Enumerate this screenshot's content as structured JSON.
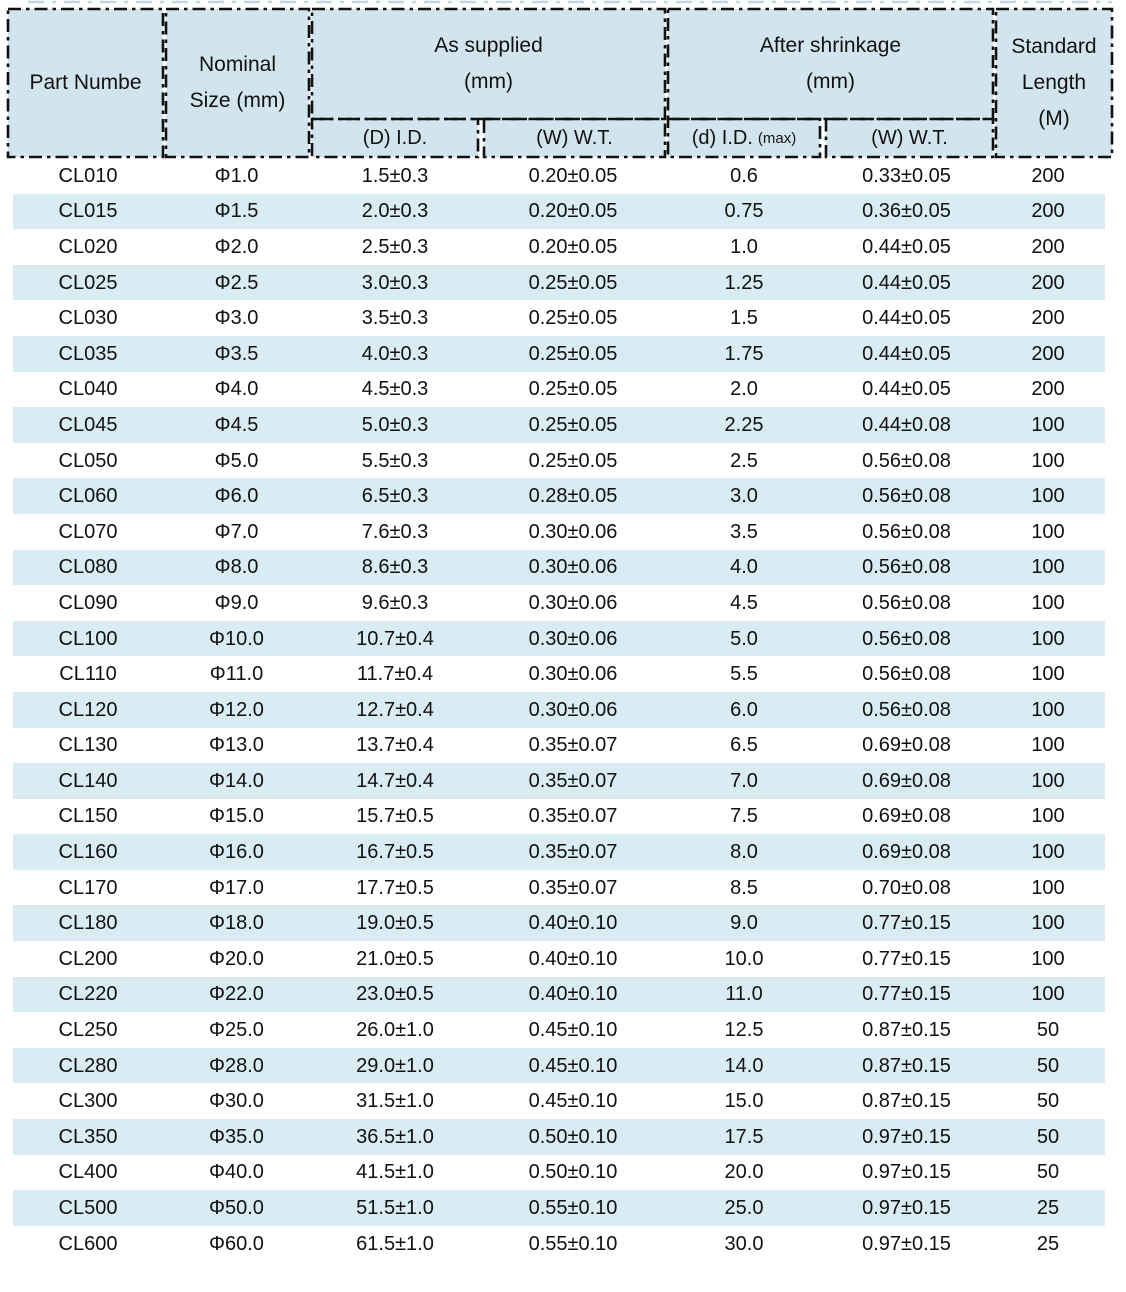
{
  "table": {
    "colors": {
      "header_bg": "#d2e5ef",
      "stripe_bg": "#d9ebf3",
      "border": "#111111"
    },
    "columns": {
      "part": "Part Numbe",
      "nominal": "Nominal\nSize (mm)",
      "as_supplied": "As supplied\n(mm)",
      "after_shrinkage": "After shrinkage\n(mm)",
      "standard_length": "Standard\nLength\n(M)",
      "sub_supplied_id": "(D) I.D.",
      "sub_supplied_wt": "(W) W.T.",
      "sub_shrunk_id": "(d) I.D.",
      "sub_shrunk_id_max": "(max)",
      "sub_shrunk_wt": "(W) W.T."
    },
    "rows": [
      [
        "CL010",
        "Φ1.0",
        "1.5±0.3",
        "0.20±0.05",
        "0.6",
        "0.33±0.05",
        "200"
      ],
      [
        "CL015",
        "Φ1.5",
        "2.0±0.3",
        "0.20±0.05",
        "0.75",
        "0.36±0.05",
        "200"
      ],
      [
        "CL020",
        "Φ2.0",
        "2.5±0.3",
        "0.20±0.05",
        "1.0",
        "0.44±0.05",
        "200"
      ],
      [
        "CL025",
        "Φ2.5",
        "3.0±0.3",
        "0.25±0.05",
        "1.25",
        "0.44±0.05",
        "200"
      ],
      [
        "CL030",
        "Φ3.0",
        "3.5±0.3",
        "0.25±0.05",
        "1.5",
        "0.44±0.05",
        "200"
      ],
      [
        "CL035",
        "Φ3.5",
        "4.0±0.3",
        "0.25±0.05",
        "1.75",
        "0.44±0.05",
        "200"
      ],
      [
        "CL040",
        "Φ4.0",
        "4.5±0.3",
        "0.25±0.05",
        "2.0",
        "0.44±0.05",
        "200"
      ],
      [
        "CL045",
        "Φ4.5",
        "5.0±0.3",
        "0.25±0.05",
        "2.25",
        "0.44±0.08",
        "100"
      ],
      [
        "CL050",
        "Φ5.0",
        "5.5±0.3",
        "0.25±0.05",
        "2.5",
        "0.56±0.08",
        "100"
      ],
      [
        "CL060",
        "Φ6.0",
        "6.5±0.3",
        "0.28±0.05",
        "3.0",
        "0.56±0.08",
        "100"
      ],
      [
        "CL070",
        "Φ7.0",
        "7.6±0.3",
        "0.30±0.06",
        "3.5",
        "0.56±0.08",
        "100"
      ],
      [
        "CL080",
        "Φ8.0",
        "8.6±0.3",
        "0.30±0.06",
        "4.0",
        "0.56±0.08",
        "100"
      ],
      [
        "CL090",
        "Φ9.0",
        "9.6±0.3",
        "0.30±0.06",
        "4.5",
        "0.56±0.08",
        "100"
      ],
      [
        "CL100",
        "Φ10.0",
        "10.7±0.4",
        "0.30±0.06",
        "5.0",
        "0.56±0.08",
        "100"
      ],
      [
        "CL110",
        "Φ11.0",
        "11.7±0.4",
        "0.30±0.06",
        "5.5",
        "0.56±0.08",
        "100"
      ],
      [
        "CL120",
        "Φ12.0",
        "12.7±0.4",
        "0.30±0.06",
        "6.0",
        "0.56±0.08",
        "100"
      ],
      [
        "CL130",
        "Φ13.0",
        "13.7±0.4",
        "0.35±0.07",
        "6.5",
        "0.69±0.08",
        "100"
      ],
      [
        "CL140",
        "Φ14.0",
        "14.7±0.4",
        "0.35±0.07",
        "7.0",
        "0.69±0.08",
        "100"
      ],
      [
        "CL150",
        "Φ15.0",
        "15.7±0.5",
        "0.35±0.07",
        "7.5",
        "0.69±0.08",
        "100"
      ],
      [
        "CL160",
        "Φ16.0",
        "16.7±0.5",
        "0.35±0.07",
        "8.0",
        "0.69±0.08",
        "100"
      ],
      [
        "CL170",
        "Φ17.0",
        "17.7±0.5",
        "0.35±0.07",
        "8.5",
        "0.70±0.08",
        "100"
      ],
      [
        "CL180",
        "Φ18.0",
        "19.0±0.5",
        "0.40±0.10",
        "9.0",
        "0.77±0.15",
        "100"
      ],
      [
        "CL200",
        "Φ20.0",
        "21.0±0.5",
        "0.40±0.10",
        "10.0",
        "0.77±0.15",
        "100"
      ],
      [
        "CL220",
        "Φ22.0",
        "23.0±0.5",
        "0.40±0.10",
        "11.0",
        "0.77±0.15",
        "100"
      ],
      [
        "CL250",
        "Φ25.0",
        "26.0±1.0",
        "0.45±0.10",
        "12.5",
        "0.87±0.15",
        "50"
      ],
      [
        "CL280",
        "Φ28.0",
        "29.0±1.0",
        "0.45±0.10",
        "14.0",
        "0.87±0.15",
        "50"
      ],
      [
        "CL300",
        "Φ30.0",
        "31.5±1.0",
        "0.45±0.10",
        "15.0",
        "0.87±0.15",
        "50"
      ],
      [
        "CL350",
        "Φ35.0",
        "36.5±1.0",
        "0.50±0.10",
        "17.5",
        "0.97±0.15",
        "50"
      ],
      [
        "CL400",
        "Φ40.0",
        "41.5±1.0",
        "0.50±0.10",
        "20.0",
        "0.97±0.15",
        "50"
      ],
      [
        "CL500",
        "Φ50.0",
        "51.5±1.0",
        "0.55±0.10",
        "25.0",
        "0.97±0.15",
        "25"
      ],
      [
        "CL600",
        "Φ60.0",
        "61.5±1.0",
        "0.55±0.10",
        "30.0",
        "0.97±0.15",
        "25"
      ]
    ]
  }
}
